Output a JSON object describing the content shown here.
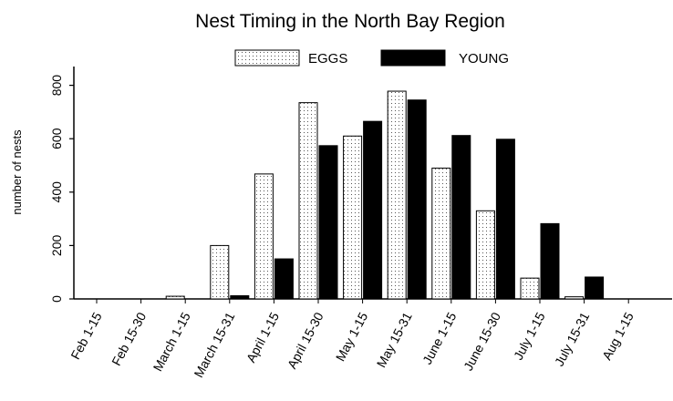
{
  "chart_data": {
    "type": "bar",
    "title": "Nest Timing in the North Bay Region",
    "xlabel": "",
    "ylabel": "number of nests",
    "ylim": [
      0,
      850
    ],
    "yticks": [
      0,
      200,
      400,
      600,
      800
    ],
    "categories": [
      "Feb 1-15",
      "Feb 15-30",
      "March 1-15",
      "March 15-31",
      "April 1-15",
      "April 15-30",
      "May 1-15",
      "May 15-31",
      "June 1-15",
      "June 15-30",
      "July 1-15",
      "July 15-31",
      "Aug 1-15"
    ],
    "series": [
      {
        "name": "EGGS",
        "pattern": "dotted",
        "color": "#ffffff",
        "values": [
          0,
          0,
          10,
          200,
          468,
          735,
          610,
          778,
          490,
          330,
          78,
          8,
          0
        ]
      },
      {
        "name": "YOUNG",
        "pattern": "solid",
        "color": "#000000",
        "values": [
          0,
          0,
          0,
          12,
          150,
          574,
          665,
          745,
          612,
          598,
          282,
          82,
          0
        ]
      }
    ],
    "legend_position": "top-center",
    "grid": false
  }
}
